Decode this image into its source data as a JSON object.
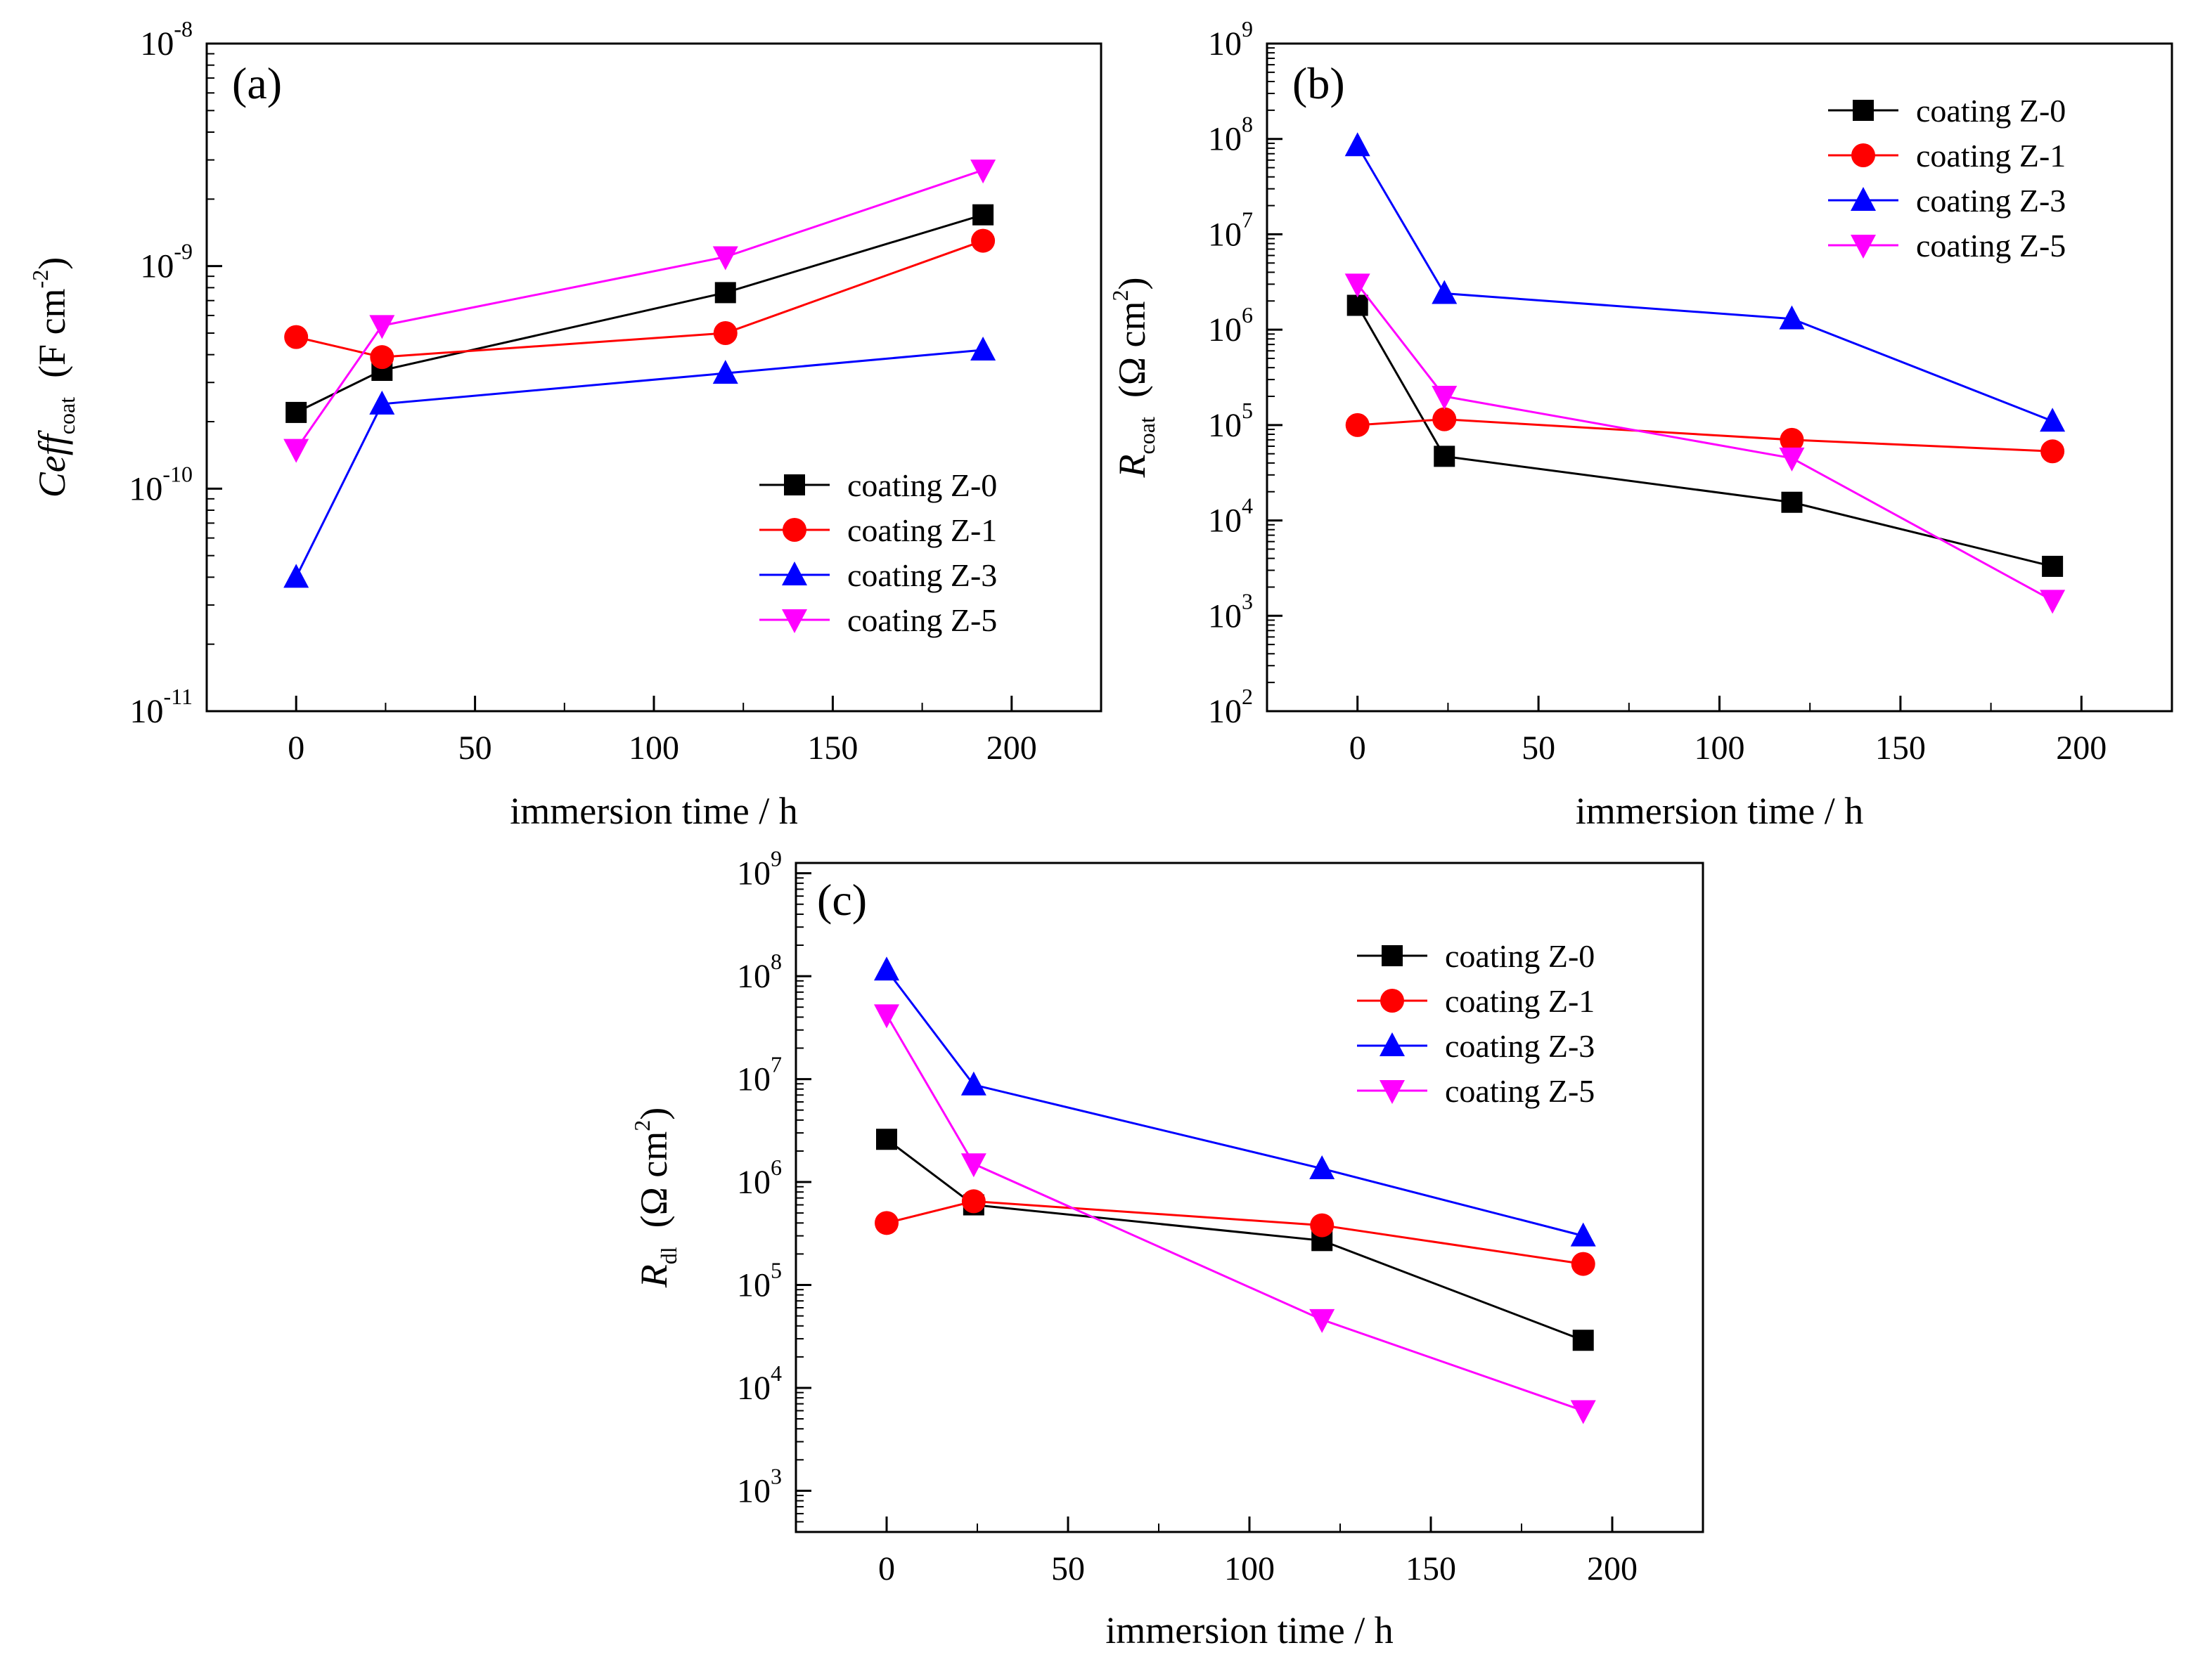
{
  "figure": {
    "legend_labels": [
      "coating Z-0",
      "coating Z-1",
      "coating Z-3",
      "coating Z-5"
    ],
    "series_colors": [
      "#000000",
      "#ff0000",
      "#0000ff",
      "#ff00ff"
    ],
    "series_markers": [
      "square",
      "circle",
      "triangle-up",
      "triangle-down"
    ]
  },
  "chart_data": [
    {
      "id": "a",
      "type": "line",
      "yscale": "log",
      "panel_label": "(a)",
      "title": "",
      "xlabel": "immersion time / h",
      "ylabel": {
        "main": "Ceff",
        "sub": "coat",
        "units_prefix": "(F cm",
        "units_sup": "-2",
        "units_suffix": ")"
      },
      "xlim": [
        -25,
        225
      ],
      "xticks": [
        0,
        50,
        100,
        150,
        200
      ],
      "ylim_exp": [
        -11,
        -8
      ],
      "yticks_exp": [
        -11,
        -10,
        -9,
        -8
      ],
      "legend_position": "lower-right",
      "x": [
        0,
        24,
        120,
        192
      ],
      "series": [
        {
          "name": "coating Z-0",
          "values": [
            2.2e-10,
            3.4e-10,
            7.6e-10,
            1.7e-09
          ]
        },
        {
          "name": "coating Z-1",
          "values": [
            4.8e-10,
            3.9e-10,
            5e-10,
            1.3e-09
          ]
        },
        {
          "name": "coating Z-3",
          "values": [
            4e-11,
            2.4e-10,
            3.3e-10,
            4.2e-10
          ]
        },
        {
          "name": "coating Z-5",
          "values": [
            1.5e-10,
            5.4e-10,
            1.1e-09,
            2.7e-09
          ]
        }
      ]
    },
    {
      "id": "b",
      "type": "line",
      "yscale": "log",
      "panel_label": "(b)",
      "title": "",
      "xlabel": "immersion time / h",
      "ylabel": {
        "main": "R",
        "sub": "coat",
        "units_prefix": "(Ω cm",
        "units_sup": "2",
        "units_suffix": ")"
      },
      "xlim": [
        -25,
        225
      ],
      "xticks": [
        0,
        50,
        100,
        150,
        200
      ],
      "ylim_exp": [
        2,
        9
      ],
      "yticks_exp": [
        2,
        3,
        4,
        5,
        6,
        7,
        8,
        9
      ],
      "legend_position": "top-right",
      "x": [
        0,
        24,
        120,
        192
      ],
      "series": [
        {
          "name": "coating Z-0",
          "values": [
            1800000.0,
            47000.0,
            15500.0,
            3300.0
          ]
        },
        {
          "name": "coating Z-1",
          "values": [
            100000.0,
            115000.0,
            70000.0,
            53000.0
          ]
        },
        {
          "name": "coating Z-3",
          "values": [
            85000000.0,
            2400000.0,
            1300000.0,
            110000.0
          ]
        },
        {
          "name": "coating Z-5",
          "values": [
            3000000.0,
            200000.0,
            45000.0,
            1450.0
          ]
        }
      ]
    },
    {
      "id": "c",
      "type": "line",
      "yscale": "log",
      "panel_label": "(c)",
      "title": "",
      "xlabel": "immersion time / h",
      "ylabel": {
        "main": "R",
        "sub": "dl",
        "units_prefix": "(Ω cm",
        "units_sup": "2",
        "units_suffix": ")"
      },
      "xlim": [
        -25,
        225
      ],
      "xticks": [
        0,
        50,
        100,
        150,
        200
      ],
      "ylim_exp": [
        2.6,
        9.1
      ],
      "yticks_exp": [
        3,
        4,
        5,
        6,
        7,
        8,
        9
      ],
      "legend_position": "top-right",
      "x": [
        0,
        24,
        120,
        192
      ],
      "series": [
        {
          "name": "coating Z-0",
          "values": [
            2600000.0,
            600000.0,
            270000.0,
            29000.0
          ]
        },
        {
          "name": "coating Z-1",
          "values": [
            400000.0,
            650000.0,
            380000.0,
            160000.0
          ]
        },
        {
          "name": "coating Z-3",
          "values": [
            115000000.0,
            8800000.0,
            1350000.0,
            300000.0
          ]
        },
        {
          "name": "coating Z-5",
          "values": [
            42000000.0,
            1500000.0,
            46000.0,
            6000.0
          ]
        }
      ]
    }
  ]
}
